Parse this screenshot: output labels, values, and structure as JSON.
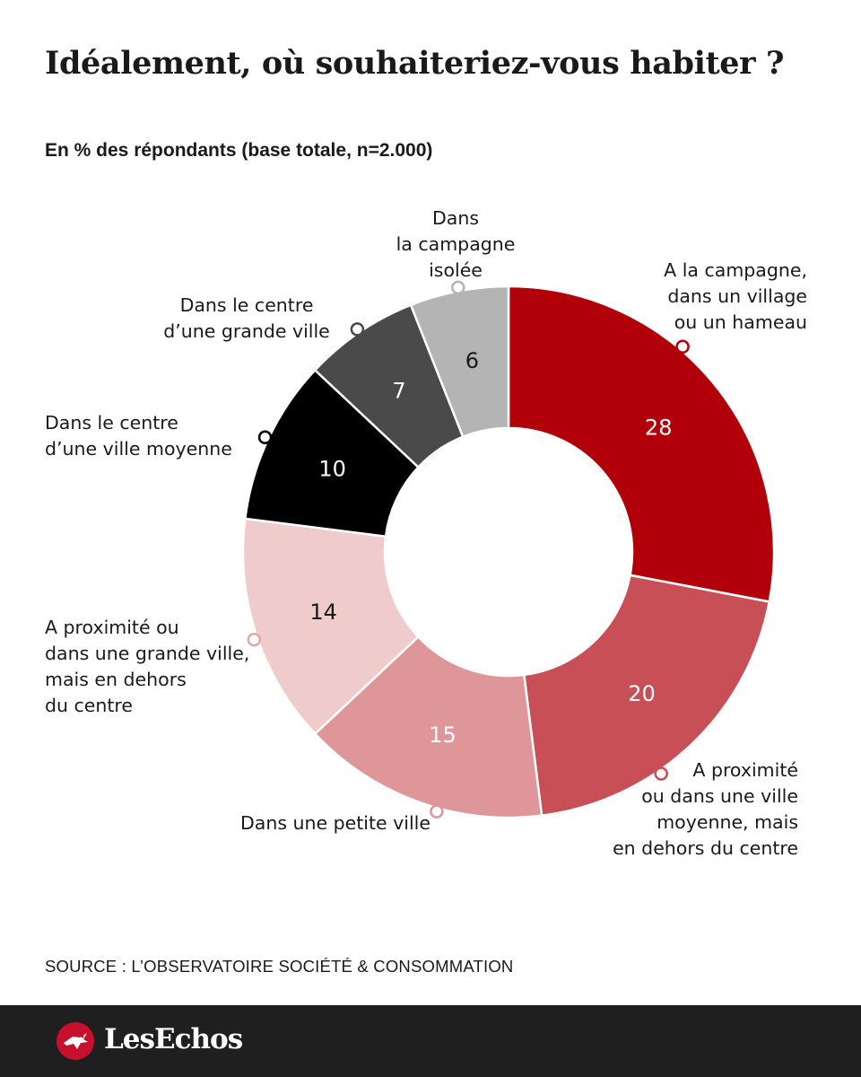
{
  "title": "Idéalement, où souhaiteriez-vous habiter ?",
  "subtitle": "En % des répondants (base totale, n=2.000)",
  "source": "SOURCE :  L’OBSERVATOIRE SOCIÉTÉ & CONSOMMATION",
  "brand": "LesEchos",
  "colors": {
    "dark_red": "#b10009",
    "medium_red": "#c94f56",
    "light_red": "#de9698",
    "pale_pink": "#efcbcb",
    "black": "#000000",
    "dark_gray": "#4a4a4a",
    "light_gray": "#b4b4b4",
    "footer_bg": "#1f1f1f"
  },
  "chart_data": {
    "type": "pie",
    "variant": "donut",
    "title": "Idéalement, où souhaiteriez-vous habiter ?",
    "subtitle": "En % des répondants (base totale, n=2.000)",
    "unit": "%",
    "categories": [
      "A la campagne, dans un village ou un hameau",
      "A proximité ou dans une ville moyenne, mais en dehors du centre",
      "Dans une petite ville",
      "A proximité ou dans une grande ville, mais en dehors du centre",
      "Dans le centre d’une ville moyenne",
      "Dans le centre d’une grande ville",
      "Dans la campagne isolée"
    ],
    "values": [
      28,
      20,
      15,
      14,
      10,
      7,
      6
    ],
    "labels": [
      "A la campagne,\ndans un village\nou un hameau",
      "A proximité\nou dans une ville\nmoyenne, mais\nen dehors du centre",
      "Dans une petite ville",
      "A proximité ou\ndans une grande ville,\nmais en dehors\ndu centre",
      "Dans le centre\nd’une ville moyenne",
      "Dans le centre\nd’une grande ville",
      "Dans\nla campagne\nisolée"
    ],
    "slice_colors": [
      "#b10009",
      "#c94f56",
      "#de9698",
      "#efcbcb",
      "#000000",
      "#4a4a4a",
      "#b4b4b4"
    ],
    "value_text_colors": [
      "#ffffff",
      "#ffffff",
      "#ffffff",
      "#1a1a1a",
      "#ffffff",
      "#ffffff",
      "#1a1a1a"
    ],
    "start": "12 o'clock",
    "direction": "clockwise",
    "legend": "none"
  }
}
